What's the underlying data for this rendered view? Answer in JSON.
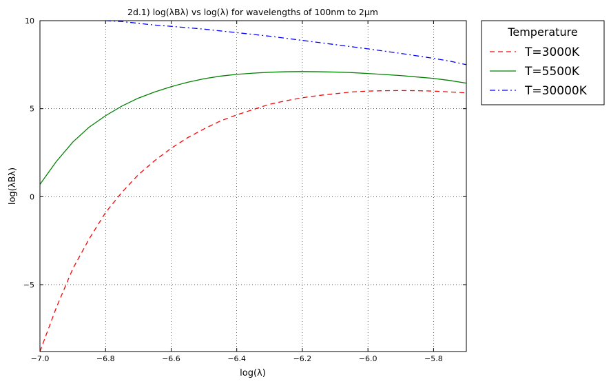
{
  "chart_data": {
    "type": "line",
    "title": "2d.1) log(λBλ) vs log(λ) for wavelengths of 100nm to 2μm",
    "xlabel": "log(λ)",
    "ylabel": "log(λBλ)",
    "xlim": [
      -7.0,
      -5.7
    ],
    "ylim": [
      -8.8,
      10
    ],
    "x_ticks": [
      -7.0,
      -6.8,
      -6.6,
      -6.4,
      -6.2,
      -6.0,
      -5.8
    ],
    "x_tick_labels": [
      "−7.0",
      "−6.8",
      "−6.6",
      "−6.4",
      "−6.2",
      "−6.0",
      "−5.8"
    ],
    "y_ticks": [
      -5,
      0,
      5,
      10
    ],
    "y_tick_labels": [
      "−5",
      "0",
      "5",
      "10"
    ],
    "grid": true,
    "legend_title": "Temperature",
    "legend_placement": "outside-top-right",
    "series": [
      {
        "name": "T=3000K",
        "color": "#ff0000",
        "dash": "dashed",
        "x": [
          -7.0,
          -6.95,
          -6.9,
          -6.85,
          -6.8,
          -6.75,
          -6.7,
          -6.65,
          -6.6,
          -6.55,
          -6.5,
          -6.45,
          -6.4,
          -6.35,
          -6.3,
          -6.25,
          -6.2,
          -6.15,
          -6.1,
          -6.05,
          -6.0,
          -5.95,
          -5.9,
          -5.85,
          -5.8,
          -5.75,
          -5.7
        ],
        "y": [
          -8.8,
          -6.3,
          -4.1,
          -2.4,
          -0.9,
          0.25,
          1.25,
          2.05,
          2.75,
          3.35,
          3.85,
          4.3,
          4.65,
          4.95,
          5.25,
          5.45,
          5.62,
          5.75,
          5.85,
          5.95,
          6.0,
          6.02,
          6.03,
          6.02,
          6.0,
          5.95,
          5.9
        ]
      },
      {
        "name": "T=5500K",
        "color": "#008000",
        "dash": "solid",
        "x": [
          -7.0,
          -6.95,
          -6.9,
          -6.85,
          -6.8,
          -6.75,
          -6.7,
          -6.65,
          -6.6,
          -6.55,
          -6.5,
          -6.45,
          -6.4,
          -6.35,
          -6.3,
          -6.25,
          -6.2,
          -6.15,
          -6.1,
          -6.05,
          -6.0,
          -5.95,
          -5.9,
          -5.85,
          -5.8,
          -5.75,
          -5.7
        ],
        "y": [
          0.7,
          2.0,
          3.1,
          3.95,
          4.6,
          5.15,
          5.6,
          5.95,
          6.25,
          6.5,
          6.7,
          6.85,
          6.95,
          7.02,
          7.07,
          7.1,
          7.11,
          7.1,
          7.08,
          7.05,
          7.0,
          6.94,
          6.88,
          6.8,
          6.72,
          6.6,
          6.45
        ]
      },
      {
        "name": "T=30000K",
        "color": "#0000ff",
        "dash": "dashdot",
        "x": [
          -6.8,
          -6.75,
          -6.7,
          -6.65,
          -6.6,
          -6.55,
          -6.5,
          -6.45,
          -6.4,
          -6.35,
          -6.3,
          -6.25,
          -6.2,
          -6.15,
          -6.1,
          -6.05,
          -6.0,
          -5.95,
          -5.9,
          -5.85,
          -5.8,
          -5.75,
          -5.7
        ],
        "y": [
          10.0,
          9.95,
          9.85,
          9.75,
          9.68,
          9.6,
          9.52,
          9.42,
          9.32,
          9.22,
          9.12,
          9.0,
          8.88,
          8.76,
          8.64,
          8.52,
          8.4,
          8.27,
          8.14,
          8.0,
          7.86,
          7.7,
          7.5
        ]
      }
    ]
  }
}
